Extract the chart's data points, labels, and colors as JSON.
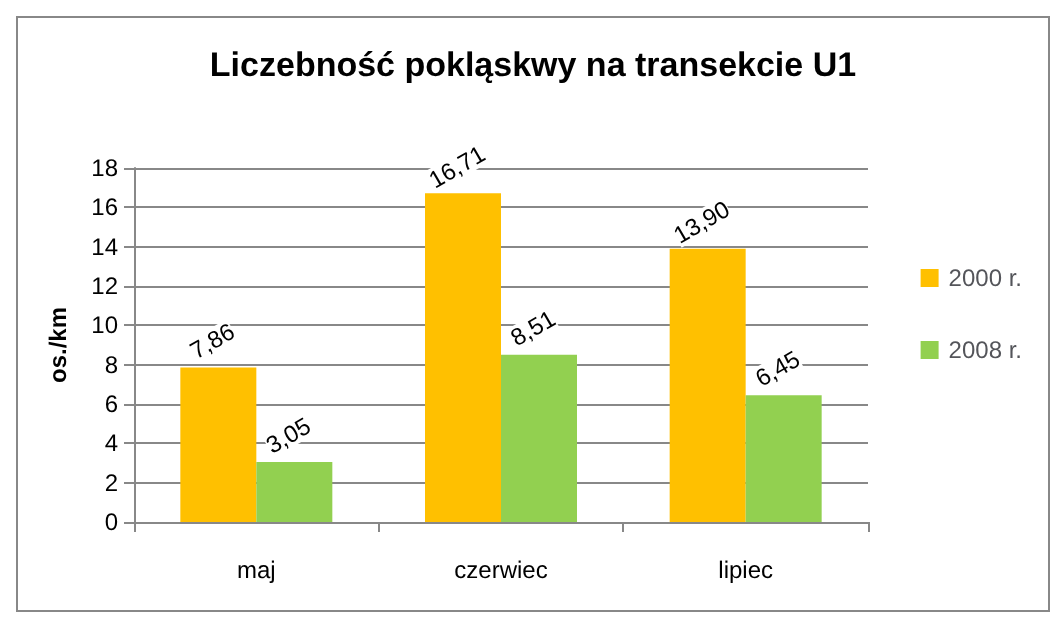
{
  "chart_data": {
    "type": "bar",
    "title": "Liczebność pokląskwy na transekcie U1",
    "ylabel": "os./km",
    "categories": [
      "maj",
      "czerwiec",
      "lipiec"
    ],
    "series": [
      {
        "name": "2000 r.",
        "color": "#ffc000",
        "values": [
          7.86,
          16.71,
          13.9
        ],
        "value_labels": [
          "7,86",
          "16,71",
          "13,90"
        ]
      },
      {
        "name": "2008 r.",
        "color": "#92d050",
        "values": [
          3.05,
          8.51,
          6.45
        ],
        "value_labels": [
          "3,05",
          "8,51",
          "6,45"
        ]
      }
    ],
    "ylim": [
      0,
      18
    ],
    "yticks": [
      0,
      2,
      4,
      6,
      8,
      10,
      12,
      14,
      16,
      18
    ],
    "grid": "y",
    "legend": "right"
  }
}
